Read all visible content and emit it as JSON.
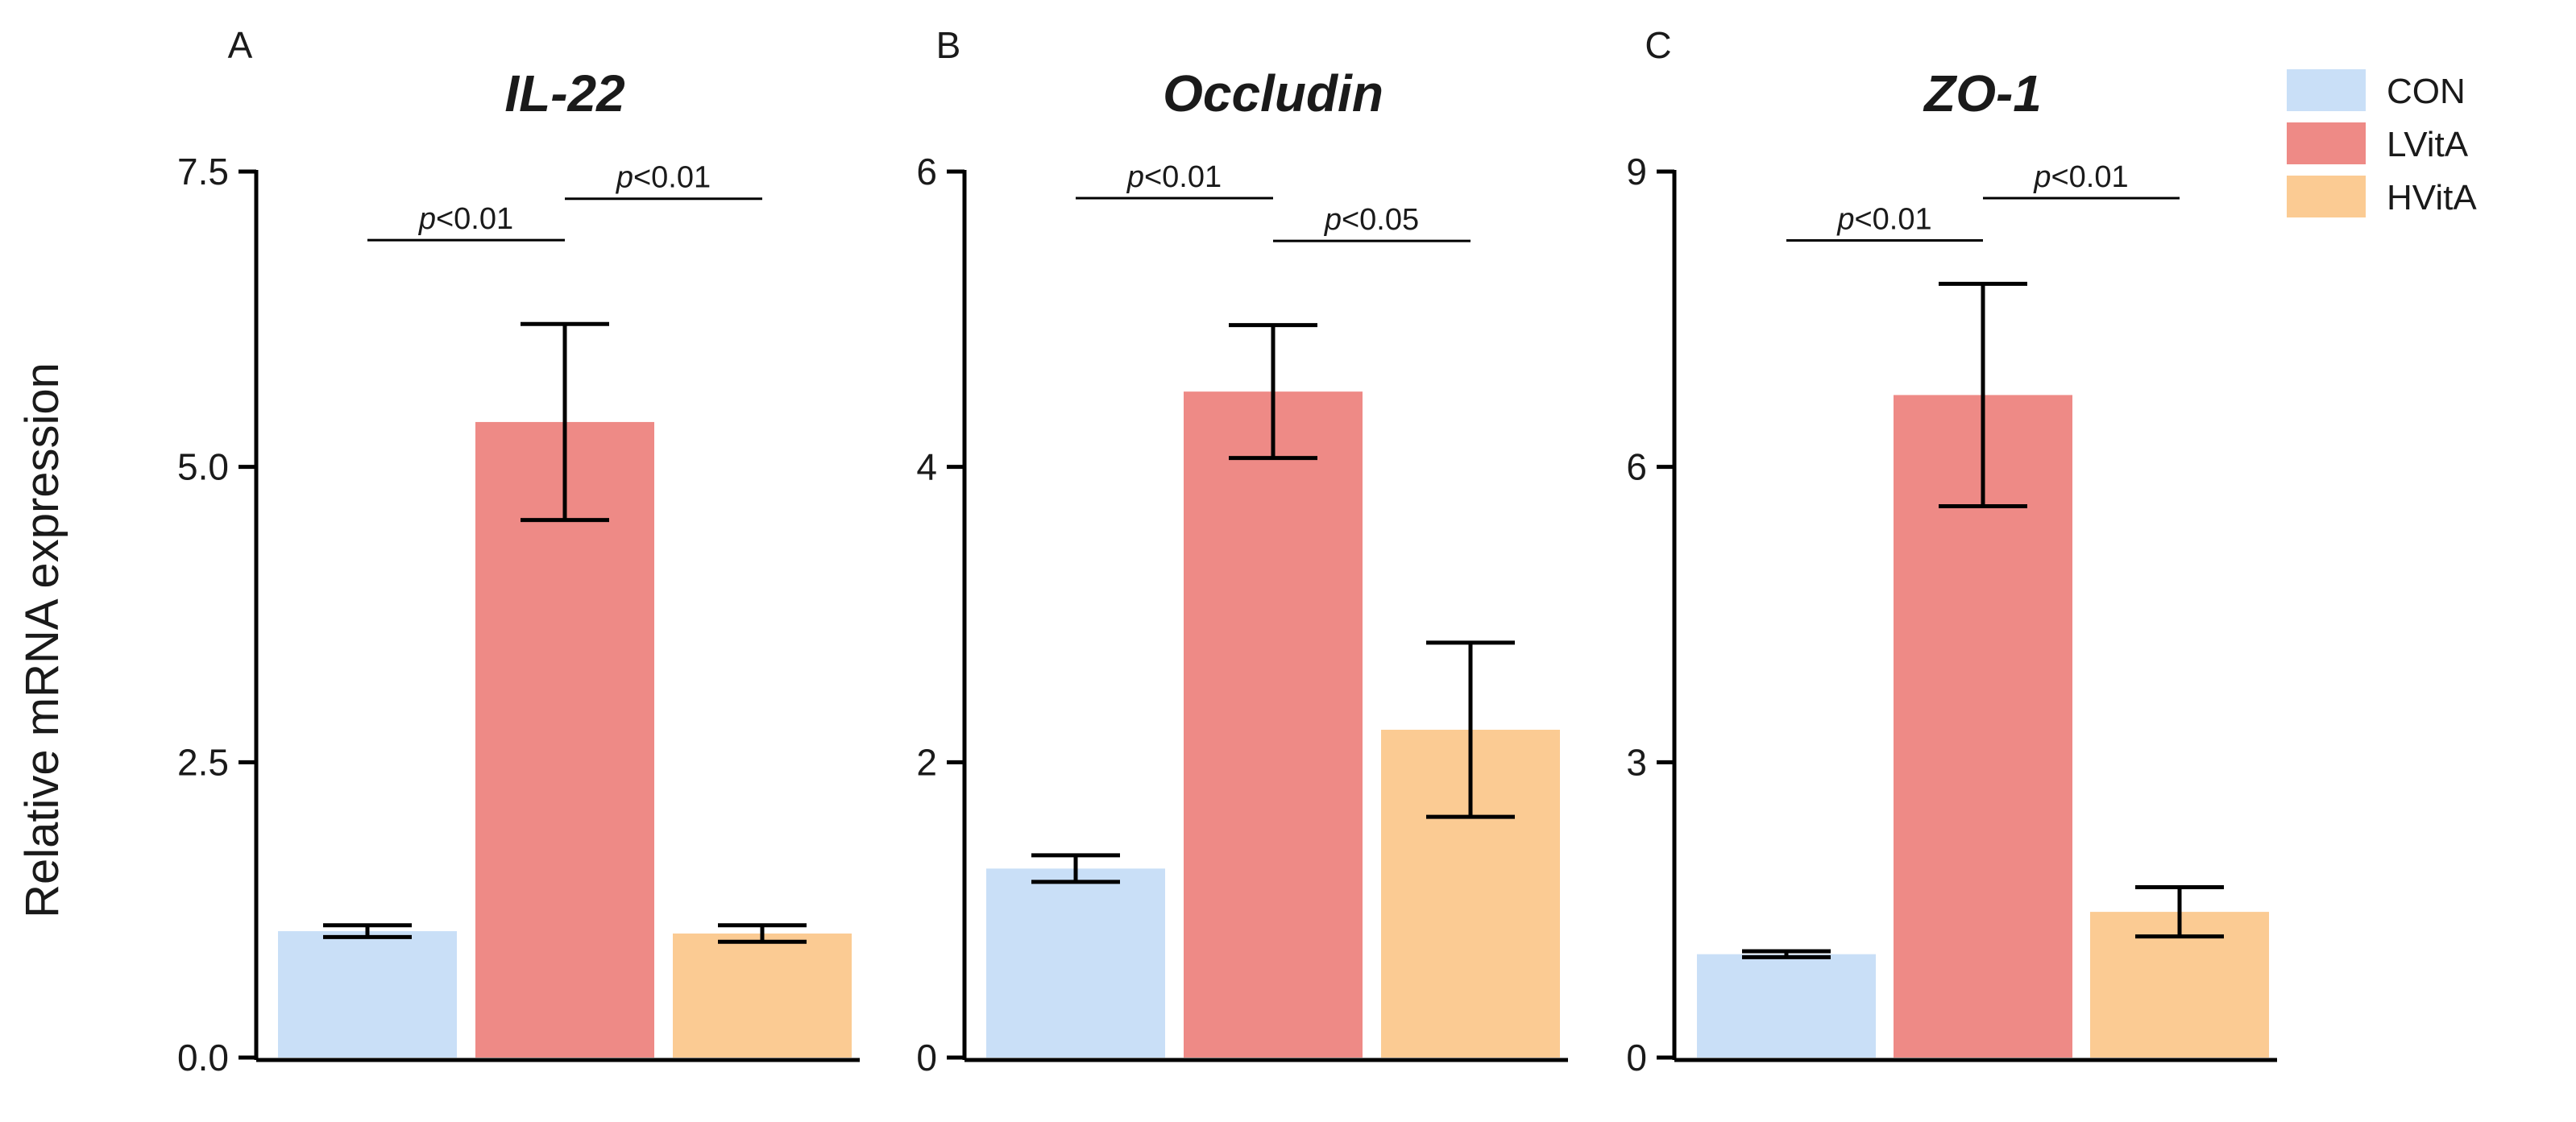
{
  "figure": {
    "ylabel": "Relative mRNA expression",
    "groups": [
      "CON",
      "LVitA",
      "HVitA"
    ],
    "colors": {
      "CON": "#c9dff7",
      "LVitA": "#ee8a86",
      "HVitA": "#fbcb93",
      "axis": "#000000"
    }
  },
  "legend": {
    "position": "top-right",
    "items": [
      {
        "label": "CON",
        "color": "#c9dff7"
      },
      {
        "label": "LVitA",
        "color": "#ee8a86"
      },
      {
        "label": "HVitA",
        "color": "#fbcb93"
      }
    ]
  },
  "chart_data": [
    {
      "type": "bar",
      "panel": "A",
      "title": "IL-22",
      "ylabel": "Relative mRNA expression",
      "categories": [
        "CON",
        "LVitA",
        "HVitA"
      ],
      "values": [
        1.07,
        5.38,
        1.05
      ],
      "errors": [
        0.05,
        0.83,
        0.07
      ],
      "ylim": [
        0,
        7.5
      ],
      "yticks": [
        0,
        2.5,
        5,
        7.5
      ],
      "yticklabels": [
        "0.0",
        "2.5",
        "5.0",
        "7.5"
      ],
      "annotations": [
        {
          "from": 0,
          "to": 1,
          "p": "p",
          "text": "<0.01",
          "y": 6.92
        },
        {
          "from": 1,
          "to": 2,
          "p": "p",
          "text": "<0.01",
          "y": 7.27
        }
      ]
    },
    {
      "type": "bar",
      "panel": "B",
      "title": "Occludin",
      "ylabel": "",
      "categories": [
        "CON",
        "LVitA",
        "HVitA"
      ],
      "values": [
        1.28,
        4.51,
        2.22
      ],
      "errors": [
        0.09,
        0.45,
        0.59
      ],
      "ylim": [
        0,
        6
      ],
      "yticks": [
        0,
        2,
        4,
        6
      ],
      "yticklabels": [
        "0",
        "2",
        "4",
        "6"
      ],
      "annotations": [
        {
          "from": 0,
          "to": 1,
          "p": "p",
          "text": "<0.01",
          "y": 5.82
        },
        {
          "from": 1,
          "to": 2,
          "p": "p",
          "text": "<0.05",
          "y": 5.53
        }
      ]
    },
    {
      "type": "bar",
      "panel": "C",
      "title": "ZO-1",
      "ylabel": "",
      "categories": [
        "CON",
        "LVitA",
        "HVitA"
      ],
      "values": [
        1.05,
        6.73,
        1.48
      ],
      "errors": [
        0.03,
        1.13,
        0.25
      ],
      "ylim": [
        0,
        9
      ],
      "yticks": [
        0,
        3,
        6,
        9
      ],
      "yticklabels": [
        "0",
        "3",
        "6",
        "9"
      ],
      "annotations": [
        {
          "from": 0,
          "to": 1,
          "p": "p",
          "text": "<0.01",
          "y": 8.3
        },
        {
          "from": 1,
          "to": 2,
          "p": "p",
          "text": "<0.01",
          "y": 8.73
        }
      ]
    }
  ]
}
